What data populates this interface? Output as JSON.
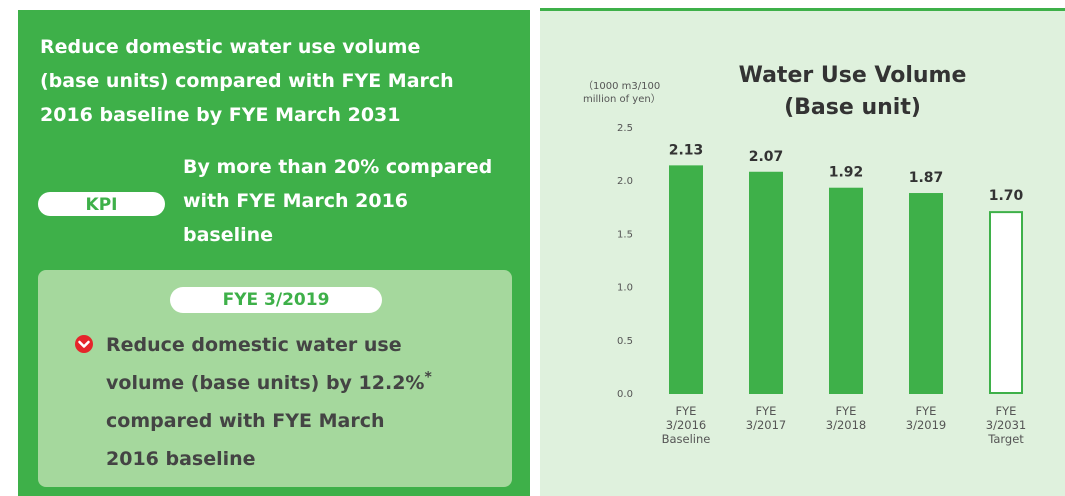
{
  "goal": "Reduce domestic water use volume (base units) compared with FYE March 2016 baseline by FYE March 2031",
  "kpi": {
    "label": "KPI",
    "text": "By more than 20% compared with FYE March 2016 baseline"
  },
  "result": {
    "year": "FYE 3/2019",
    "text_before": "Reduce domestic water use volume (base units) by 12.2%",
    "asterisk": "*",
    "text_after": "compared with FYE March 2016 baseline"
  },
  "chart_data": {
    "type": "bar",
    "title": "Water Use Volume (Base unit)",
    "y_label": "（1000 m3/100 million of yen）",
    "categories": [
      "FYE 3/2016 Baseline",
      "FYE 3/2017",
      "FYE 3/2018",
      "FYE 3/2019",
      "FYE 3/2031 Target"
    ],
    "values": [
      2.13,
      2.07,
      1.92,
      1.87,
      1.7
    ],
    "value_labels": [
      "2.13",
      "2.07",
      "1.92",
      "1.87",
      "1.70"
    ],
    "colors": [
      "#3eb049",
      "#3eb049",
      "#3eb049",
      "#3eb049",
      "#ffffff"
    ],
    "edgecolor": "#3eb049",
    "ylim": [
      0,
      2.5
    ],
    "yticks": [
      {
        "value": 0,
        "label": "0.0"
      },
      0.5,
      {
        "value": 1,
        "label": "1.0"
      },
      1.5,
      {
        "value": 2,
        "label": "2.0"
      },
      2.5
    ],
    "grid": false
  }
}
